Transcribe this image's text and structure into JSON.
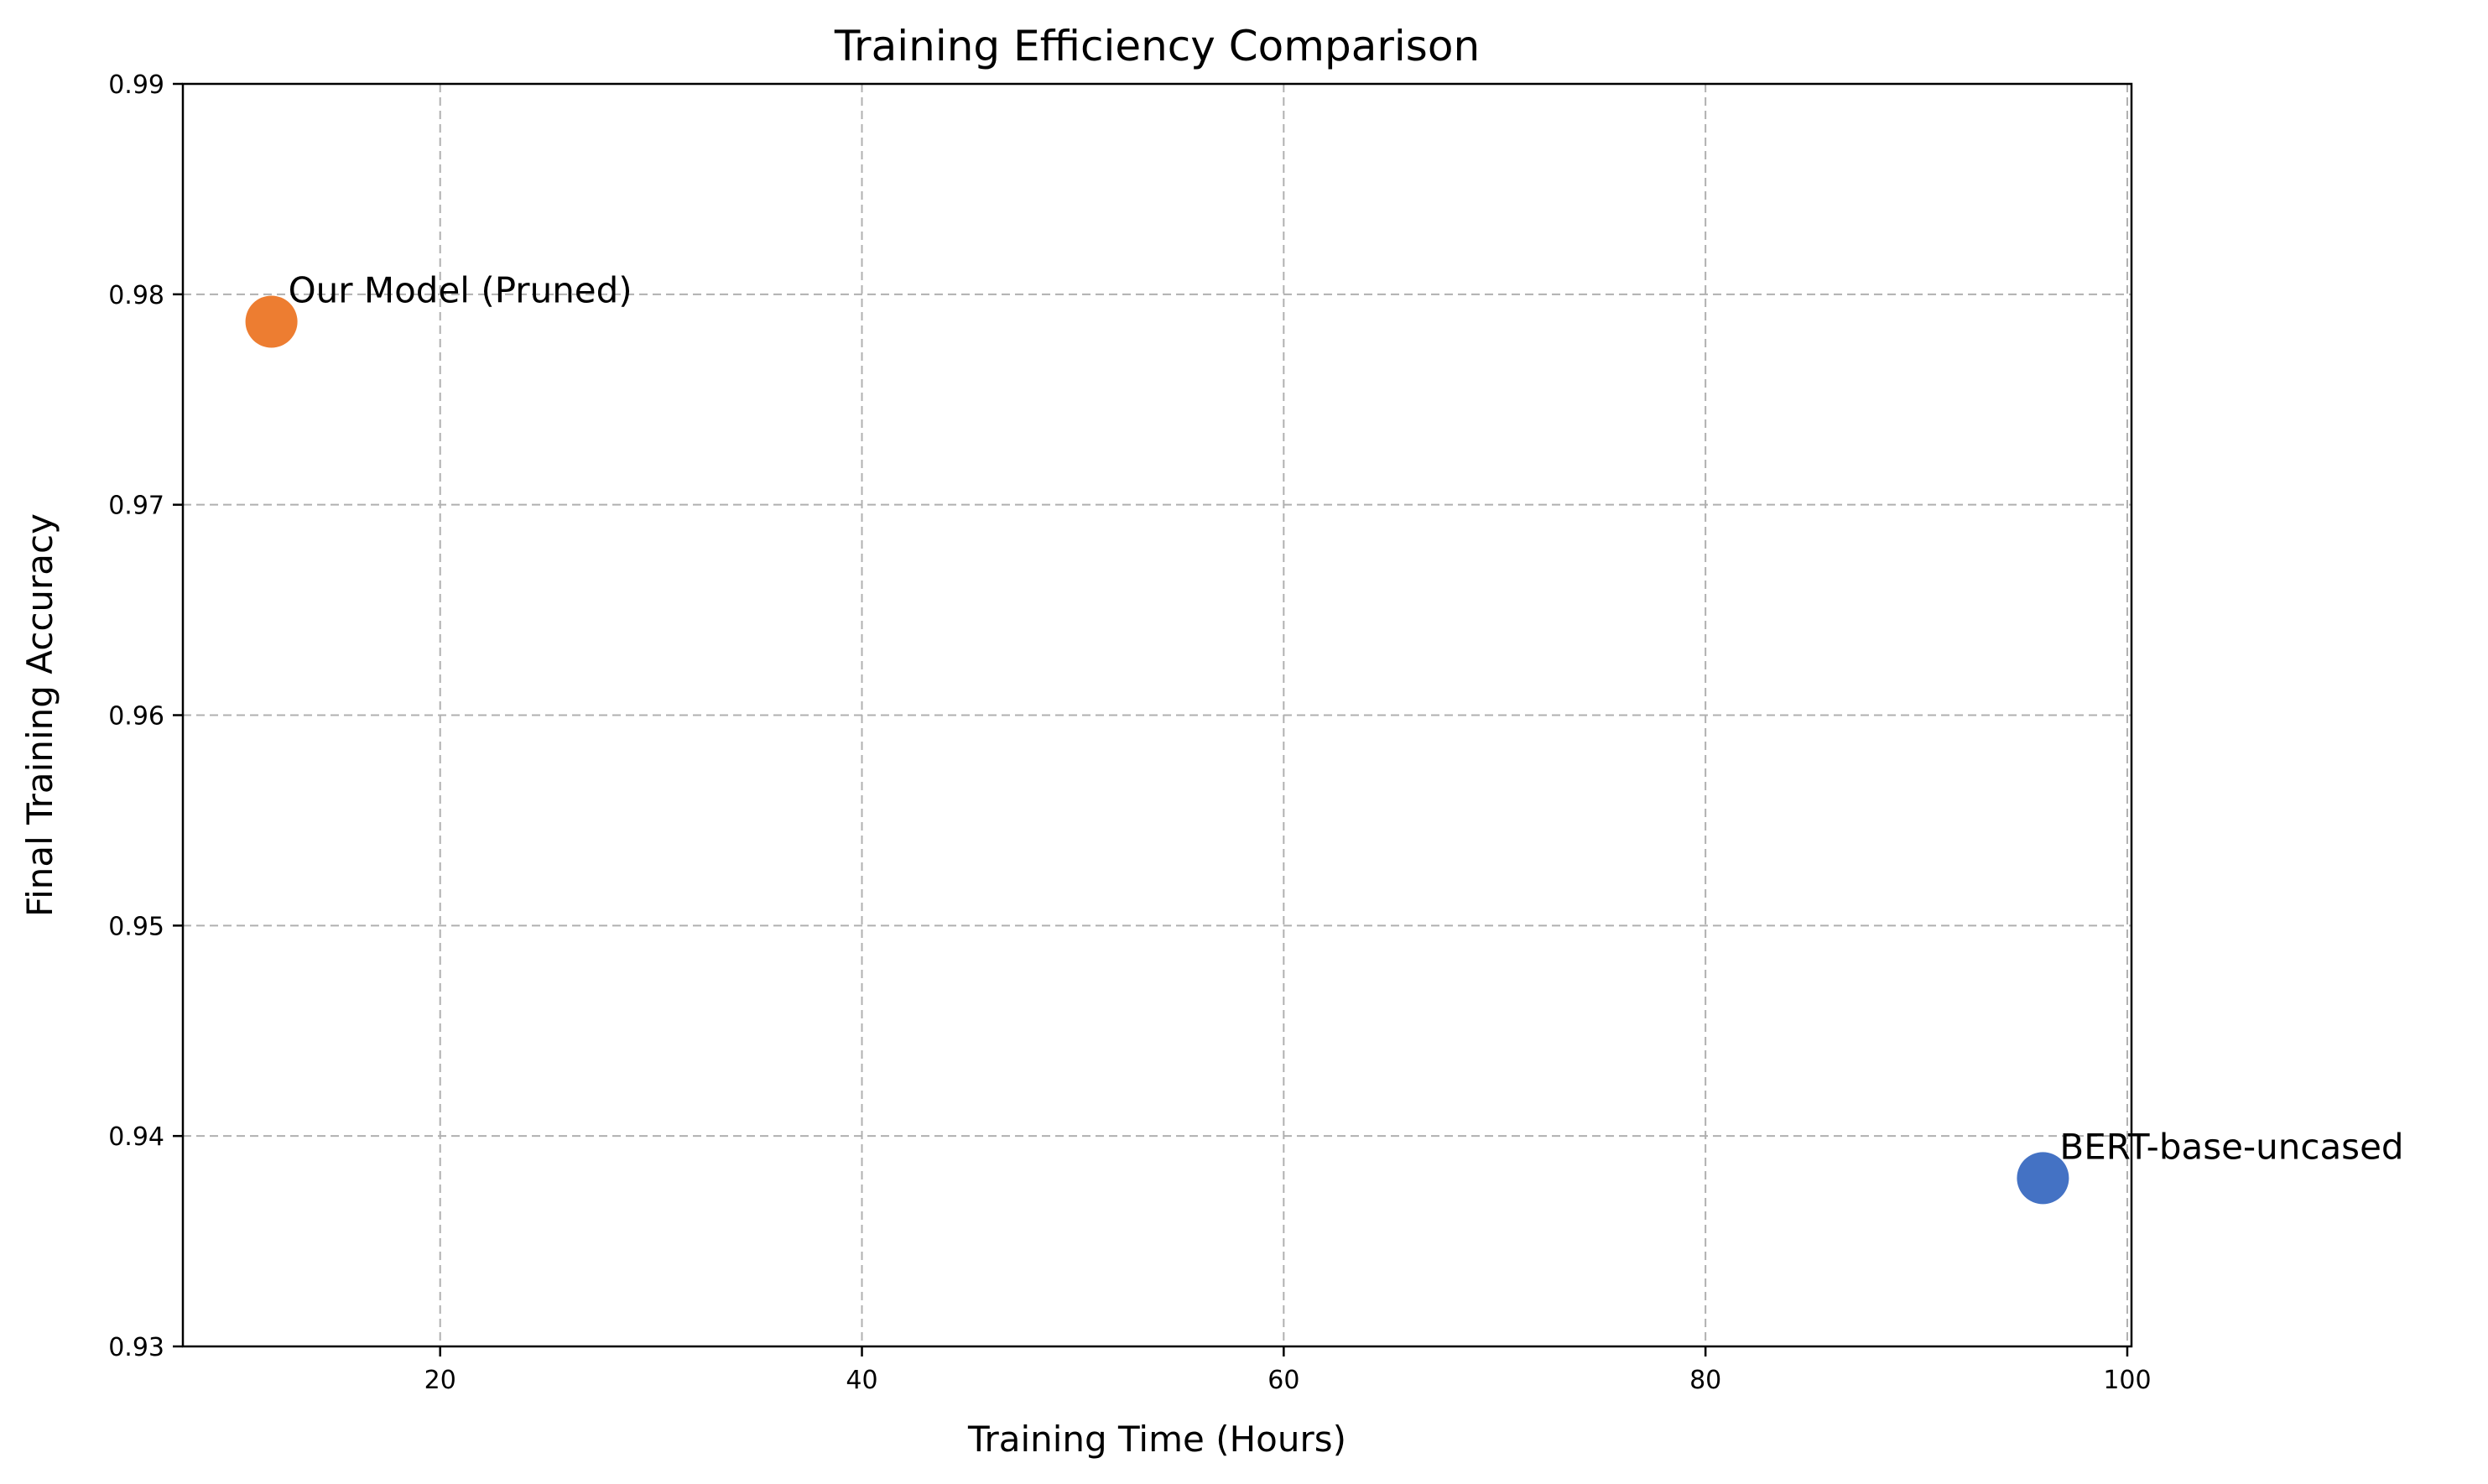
{
  "chart_data": {
    "type": "scatter",
    "title": "Training Efficiency Comparison",
    "xlabel": "Training Time (Hours)",
    "ylabel": "Final Training Accuracy",
    "xlim": [
      7.8,
      100.2
    ],
    "ylim": [
      0.93,
      0.99
    ],
    "xticks": [
      20,
      40,
      60,
      80,
      100
    ],
    "yticks": [
      0.93,
      0.94,
      0.95,
      0.96,
      0.97,
      0.98,
      0.99
    ],
    "xtick_labels": [
      "20",
      "40",
      "60",
      "80",
      "100"
    ],
    "ytick_labels": [
      "0.93",
      "0.94",
      "0.95",
      "0.96",
      "0.97",
      "0.98",
      "0.99"
    ],
    "grid": true,
    "grid_style": "dashed",
    "points": [
      {
        "label": "BERT-base-uncased",
        "x": 96,
        "y": 0.938,
        "color": "#4472C4"
      },
      {
        "label": "Our Model (Pruned)",
        "x": 12,
        "y": 0.9787,
        "color": "#ED7D31"
      }
    ]
  }
}
